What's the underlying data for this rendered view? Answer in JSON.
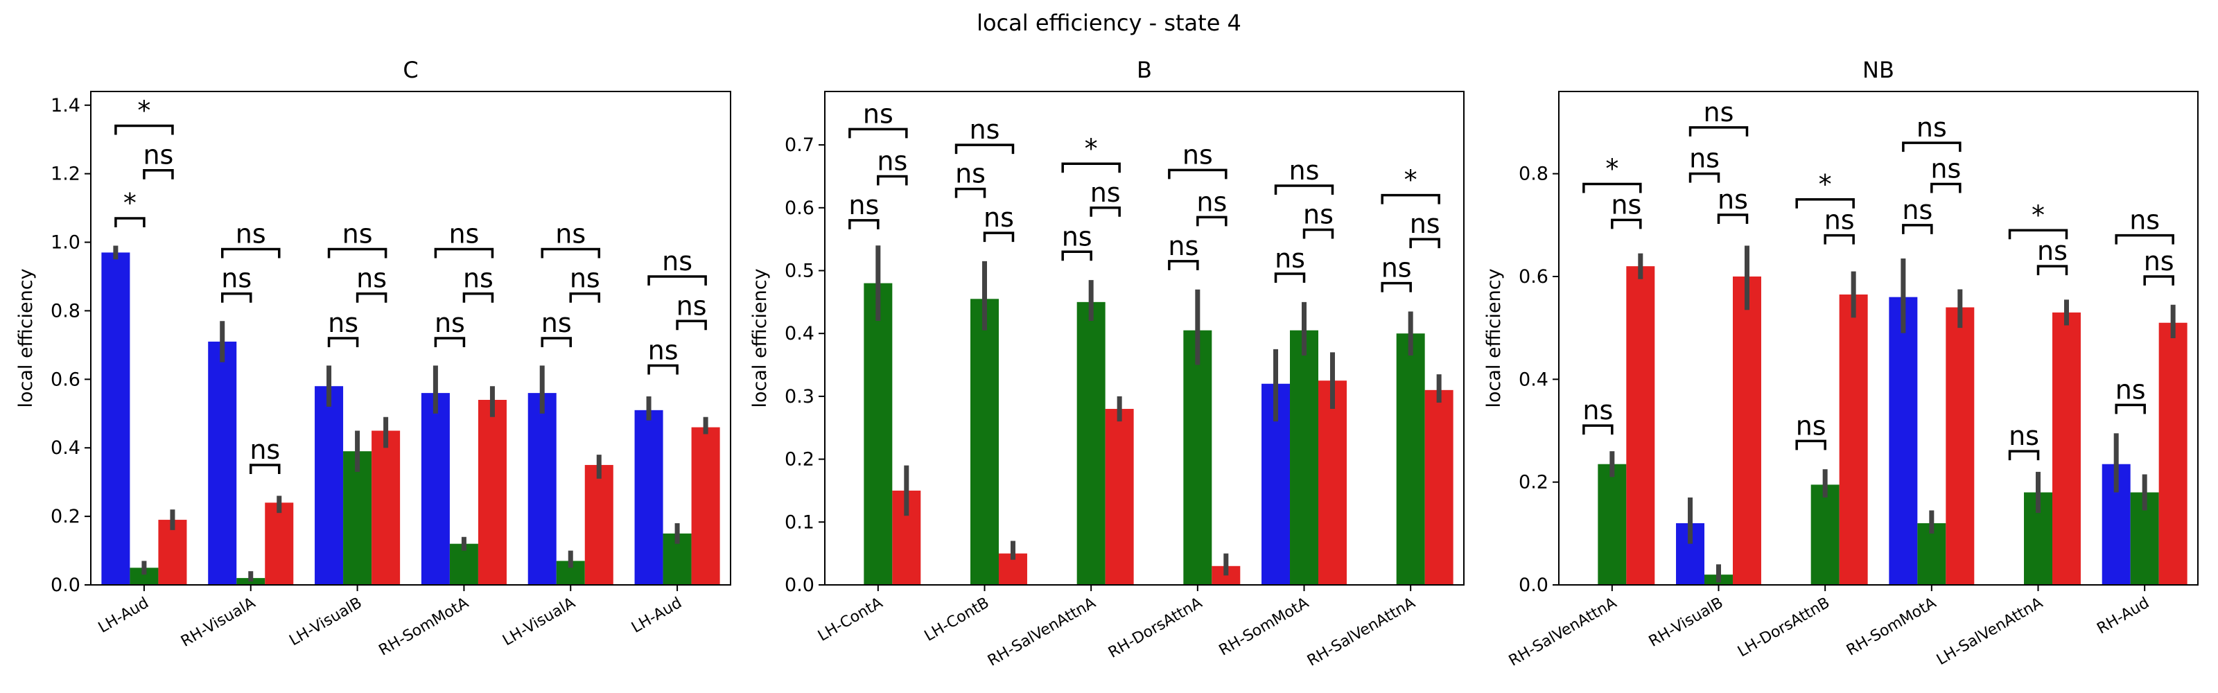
{
  "figure": {
    "title": "local efficiency - state 4"
  },
  "chart_data": [
    {
      "type": "bar",
      "title": "C",
      "xlabel": "",
      "ylabel": "local efficiency",
      "ylim": [
        0,
        1.44
      ],
      "yticks": [
        "0.0",
        "0.2",
        "0.4",
        "0.6",
        "0.8",
        "1.0",
        "1.2",
        "1.4"
      ],
      "categories": [
        "LH-Aud",
        "RH-VisualA",
        "LH-VisualB",
        "RH-SomMotA",
        "LH-VisualA",
        "LH-Aud"
      ],
      "series": [
        {
          "color": "#1a1ae6",
          "values": [
            0.97,
            0.71,
            0.58,
            0.56,
            0.56,
            0.51
          ],
          "err_low": [
            0.95,
            0.65,
            0.52,
            0.5,
            0.5,
            0.48
          ],
          "err_high": [
            0.99,
            0.77,
            0.64,
            0.64,
            0.64,
            0.55
          ]
        },
        {
          "color": "#117411",
          "values": [
            0.05,
            0.02,
            0.39,
            0.12,
            0.07,
            0.15
          ],
          "err_low": [
            0.03,
            0.01,
            0.33,
            0.1,
            0.05,
            0.12
          ],
          "err_high": [
            0.07,
            0.04,
            0.45,
            0.14,
            0.1,
            0.18
          ]
        },
        {
          "color": "#e32222",
          "values": [
            0.19,
            0.24,
            0.45,
            0.54,
            0.35,
            0.46
          ],
          "err_low": [
            0.16,
            0.21,
            0.4,
            0.49,
            0.31,
            0.44
          ],
          "err_high": [
            0.22,
            0.26,
            0.49,
            0.58,
            0.38,
            0.49
          ]
        }
      ],
      "annotations": [
        {
          "group": 0,
          "from": 0,
          "to": 1,
          "label": "*",
          "y": 1.07
        },
        {
          "group": 0,
          "from": 1,
          "to": 2,
          "label": "ns",
          "y": 1.21
        },
        {
          "group": 0,
          "from": 0,
          "to": 2,
          "label": "*",
          "y": 1.34
        },
        {
          "group": 1,
          "from": 0,
          "to": 1,
          "label": "ns",
          "y": 0.85
        },
        {
          "group": 1,
          "from": 0,
          "to": 2,
          "label": "ns",
          "y": 0.98
        },
        {
          "group": 1,
          "from": 1,
          "to": 2,
          "label": "ns",
          "y": 0.35
        },
        {
          "group": 2,
          "from": 0,
          "to": 1,
          "label": "ns",
          "y": 0.72
        },
        {
          "group": 2,
          "from": 1,
          "to": 2,
          "label": "ns",
          "y": 0.85
        },
        {
          "group": 2,
          "from": 0,
          "to": 2,
          "label": "ns",
          "y": 0.98
        },
        {
          "group": 3,
          "from": 0,
          "to": 1,
          "label": "ns",
          "y": 0.72
        },
        {
          "group": 3,
          "from": 1,
          "to": 2,
          "label": "ns",
          "y": 0.85
        },
        {
          "group": 3,
          "from": 0,
          "to": 2,
          "label": "ns",
          "y": 0.98
        },
        {
          "group": 4,
          "from": 0,
          "to": 1,
          "label": "ns",
          "y": 0.72
        },
        {
          "group": 4,
          "from": 1,
          "to": 2,
          "label": "ns",
          "y": 0.85
        },
        {
          "group": 4,
          "from": 0,
          "to": 2,
          "label": "ns",
          "y": 0.98
        },
        {
          "group": 5,
          "from": 0,
          "to": 1,
          "label": "ns",
          "y": 0.64
        },
        {
          "group": 5,
          "from": 1,
          "to": 2,
          "label": "ns",
          "y": 0.77
        },
        {
          "group": 5,
          "from": 0,
          "to": 2,
          "label": "ns",
          "y": 0.9
        }
      ]
    },
    {
      "type": "bar",
      "title": "B",
      "xlabel": "",
      "ylabel": "local efficiency",
      "ylim": [
        0,
        0.785
      ],
      "yticks": [
        "0.0",
        "0.1",
        "0.2",
        "0.3",
        "0.4",
        "0.5",
        "0.6",
        "0.7"
      ],
      "categories": [
        "LH-ContA",
        "LH-ContB",
        "RH-SalVenAttnA",
        "RH-DorsAttnA",
        "RH-SomMotA",
        "RH-SalVenAttnA"
      ],
      "series": [
        {
          "color": "#1a1ae6",
          "values": [
            0,
            0,
            0,
            0,
            0.32,
            0
          ],
          "err_low": [
            0,
            0,
            0,
            0,
            0.26,
            0
          ],
          "err_high": [
            0,
            0,
            0,
            0,
            0.375,
            0
          ]
        },
        {
          "color": "#117411",
          "values": [
            0.48,
            0.455,
            0.45,
            0.405,
            0.405,
            0.4
          ],
          "err_low": [
            0.42,
            0.405,
            0.42,
            0.35,
            0.365,
            0.365
          ],
          "err_high": [
            0.54,
            0.515,
            0.485,
            0.47,
            0.45,
            0.435
          ]
        },
        {
          "color": "#e32222",
          "values": [
            0.15,
            0.05,
            0.28,
            0.03,
            0.325,
            0.31
          ],
          "err_low": [
            0.11,
            0.04,
            0.26,
            0.015,
            0.28,
            0.29
          ],
          "err_high": [
            0.19,
            0.07,
            0.3,
            0.05,
            0.37,
            0.335
          ]
        }
      ],
      "annotations": [
        {
          "group": 0,
          "from": 0,
          "to": 1,
          "label": "ns",
          "y": 0.58
        },
        {
          "group": 0,
          "from": 1,
          "to": 2,
          "label": "ns",
          "y": 0.65
        },
        {
          "group": 0,
          "from": 0,
          "to": 2,
          "label": "ns",
          "y": 0.725
        },
        {
          "group": 1,
          "from": 0,
          "to": 1,
          "label": "ns",
          "y": 0.63
        },
        {
          "group": 1,
          "from": 1,
          "to": 2,
          "label": "ns",
          "y": 0.56
        },
        {
          "group": 1,
          "from": 0,
          "to": 2,
          "label": "ns",
          "y": 0.7
        },
        {
          "group": 2,
          "from": 0,
          "to": 1,
          "label": "ns",
          "y": 0.53
        },
        {
          "group": 2,
          "from": 1,
          "to": 2,
          "label": "ns",
          "y": 0.6
        },
        {
          "group": 2,
          "from": 0,
          "to": 2,
          "label": "*",
          "y": 0.67
        },
        {
          "group": 3,
          "from": 0,
          "to": 1,
          "label": "ns",
          "y": 0.515
        },
        {
          "group": 3,
          "from": 1,
          "to": 2,
          "label": "ns",
          "y": 0.585
        },
        {
          "group": 3,
          "from": 0,
          "to": 2,
          "label": "ns",
          "y": 0.66
        },
        {
          "group": 4,
          "from": 0,
          "to": 1,
          "label": "ns",
          "y": 0.495
        },
        {
          "group": 4,
          "from": 1,
          "to": 2,
          "label": "ns",
          "y": 0.565
        },
        {
          "group": 4,
          "from": 0,
          "to": 2,
          "label": "ns",
          "y": 0.635
        },
        {
          "group": 5,
          "from": 0,
          "to": 1,
          "label": "ns",
          "y": 0.48
        },
        {
          "group": 5,
          "from": 1,
          "to": 2,
          "label": "ns",
          "y": 0.55
        },
        {
          "group": 5,
          "from": 0,
          "to": 2,
          "label": "*",
          "y": 0.62
        }
      ]
    },
    {
      "type": "bar",
      "title": "NB",
      "xlabel": "",
      "ylabel": "local efficiency",
      "ylim": [
        0,
        0.96
      ],
      "yticks": [
        "0.0",
        "0.2",
        "0.4",
        "0.6",
        "0.8"
      ],
      "categories": [
        "RH-SalVenAttnA",
        "RH-VisualB",
        "LH-DorsAttnB",
        "RH-SomMotA",
        "LH-SalVenAttnA",
        "RH-Aud"
      ],
      "series": [
        {
          "color": "#1a1ae6",
          "values": [
            0,
            0.12,
            0,
            0.56,
            0,
            0.235
          ],
          "err_low": [
            0,
            0.08,
            0,
            0.49,
            0,
            0.18
          ],
          "err_high": [
            0,
            0.17,
            0,
            0.635,
            0,
            0.295
          ]
        },
        {
          "color": "#117411",
          "values": [
            0.235,
            0.02,
            0.195,
            0.12,
            0.18,
            0.18
          ],
          "err_low": [
            0.21,
            0.005,
            0.17,
            0.1,
            0.14,
            0.145
          ],
          "err_high": [
            0.26,
            0.04,
            0.225,
            0.145,
            0.22,
            0.215
          ]
        },
        {
          "color": "#e32222",
          "values": [
            0.62,
            0.6,
            0.565,
            0.54,
            0.53,
            0.51
          ],
          "err_low": [
            0.595,
            0.535,
            0.52,
            0.5,
            0.505,
            0.48
          ],
          "err_high": [
            0.645,
            0.66,
            0.61,
            0.575,
            0.555,
            0.545
          ]
        }
      ],
      "annotations": [
        {
          "group": 0,
          "from": 0,
          "to": 1,
          "label": "ns",
          "y": 0.31
        },
        {
          "group": 0,
          "from": 1,
          "to": 2,
          "label": "ns",
          "y": 0.71
        },
        {
          "group": 0,
          "from": 0,
          "to": 2,
          "label": "*",
          "y": 0.78
        },
        {
          "group": 1,
          "from": 0,
          "to": 1,
          "label": "ns",
          "y": 0.8
        },
        {
          "group": 1,
          "from": 1,
          "to": 2,
          "label": "ns",
          "y": 0.72
        },
        {
          "group": 1,
          "from": 0,
          "to": 2,
          "label": "ns",
          "y": 0.89
        },
        {
          "group": 2,
          "from": 0,
          "to": 1,
          "label": "ns",
          "y": 0.28
        },
        {
          "group": 2,
          "from": 1,
          "to": 2,
          "label": "ns",
          "y": 0.68
        },
        {
          "group": 2,
          "from": 0,
          "to": 2,
          "label": "*",
          "y": 0.75
        },
        {
          "group": 3,
          "from": 0,
          "to": 1,
          "label": "ns",
          "y": 0.7
        },
        {
          "group": 3,
          "from": 1,
          "to": 2,
          "label": "ns",
          "y": 0.78
        },
        {
          "group": 3,
          "from": 0,
          "to": 2,
          "label": "ns",
          "y": 0.86
        },
        {
          "group": 4,
          "from": 0,
          "to": 1,
          "label": "ns",
          "y": 0.26
        },
        {
          "group": 4,
          "from": 1,
          "to": 2,
          "label": "ns",
          "y": 0.62
        },
        {
          "group": 4,
          "from": 0,
          "to": 2,
          "label": "*",
          "y": 0.69
        },
        {
          "group": 5,
          "from": 0,
          "to": 1,
          "label": "ns",
          "y": 0.35
        },
        {
          "group": 5,
          "from": 1,
          "to": 2,
          "label": "ns",
          "y": 0.6
        },
        {
          "group": 5,
          "from": 0,
          "to": 2,
          "label": "ns",
          "y": 0.68
        }
      ]
    }
  ]
}
